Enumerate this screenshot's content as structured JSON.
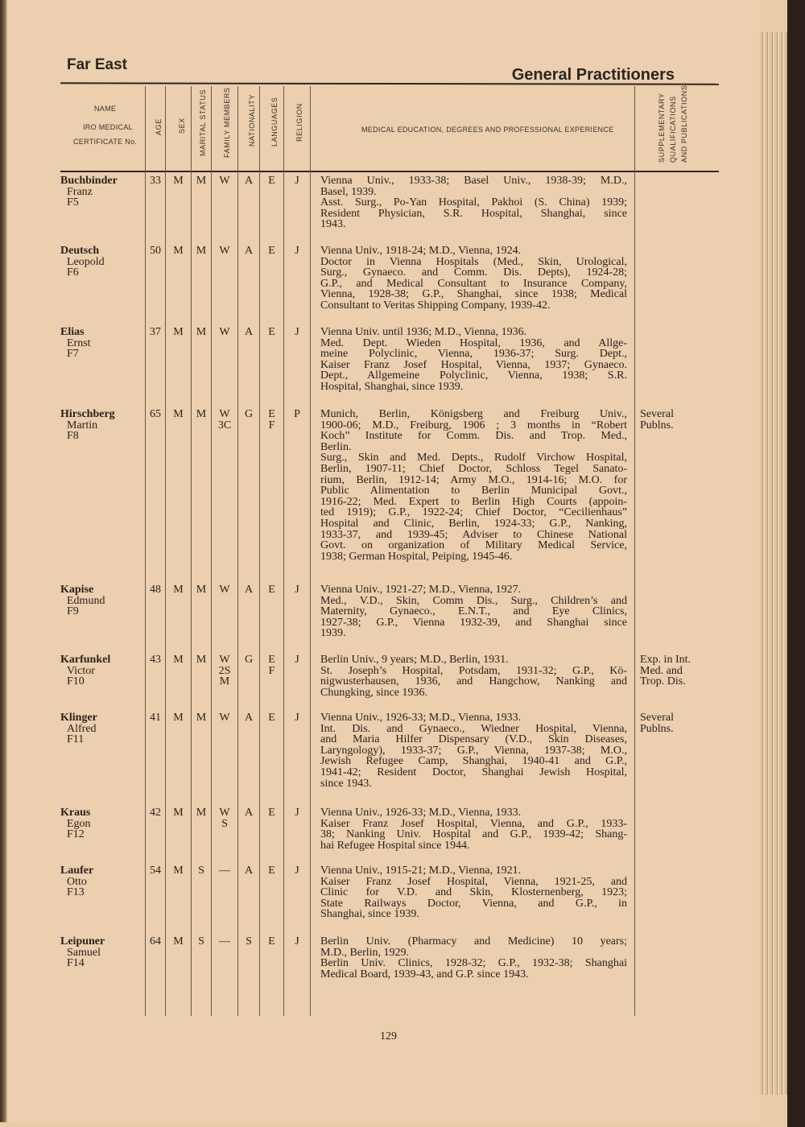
{
  "header": {
    "left": "Far East",
    "right": "General Practitioners"
  },
  "columns": {
    "name": "NAME",
    "iro": "IRO MEDICAL",
    "cert": "CERTIFICATE No.",
    "age": "AGE",
    "sex": "SEX",
    "marital": "MARITAL STATUS",
    "family": "FAMILY MEMBERS",
    "nationality": "NATIONALITY",
    "languages": "LANGUAGES",
    "religion": "RELIGION",
    "education": "MEDICAL EDUCATION, DEGREES AND PROFESSIONAL EXPERIENCE",
    "supp1": "SUPPLEMENTARY",
    "supp2": "QUALIFICATIONS",
    "supp3": "AND PUBLICATIONS"
  },
  "rows": [
    {
      "surname": "Buchbinder",
      "given": "Franz",
      "cert": "F5",
      "age": "33",
      "sex": "M",
      "marital": "M",
      "family": "W",
      "nationality": "A",
      "languages": "E",
      "religion": "J",
      "paragraphs": [
        [
          "Vienna Univ., 1933-38; Basel Univ., 1938-39; M.D.,",
          "Basel, 1939."
        ],
        [
          "Asst. Surg., Po-Yan Hospital, Pakhoi (S. China) 1939;",
          "Resident Physician, S.R. Hospital, Shanghai, since",
          "1943."
        ]
      ],
      "supp": ""
    },
    {
      "surname": "Deutsch",
      "given": "Leopold",
      "cert": "F6",
      "age": "50",
      "sex": "M",
      "marital": "M",
      "family": "W",
      "nationality": "A",
      "languages": "E",
      "religion": "J",
      "paragraphs": [
        [
          "Vienna Univ., 1918-24; M.D., Vienna, 1924."
        ],
        [
          "Doctor in Vienna Hospitals (Med., Skin, Urological,",
          "Surg., Gynaeco. and Comm. Dis. Depts), 1924-28;",
          "G.P., and Medical Consultant to Insurance Company,",
          "Vienna, 1928-38; G.P., Shanghai, since 1938; Medical",
          "Consultant to Veritas Shipping Company, 1939-42."
        ]
      ],
      "supp": ""
    },
    {
      "surname": "Elias",
      "given": "Ernst",
      "cert": "F7",
      "age": "37",
      "sex": "M",
      "marital": "M",
      "family": "W",
      "nationality": "A",
      "languages": "E",
      "religion": "J",
      "paragraphs": [
        [
          "Vienna Univ. until 1936; M.D., Vienna, 1936."
        ],
        [
          "Med. Dept. Wieden Hospital, 1936, and Allge-",
          "meine Polyclinic, Vienna, 1936-37; Surg. Dept.,",
          "Kaiser Franz Josef Hospital, Vienna, 1937; Gynaeco.",
          "Dept., Allgemeine Polyclinic, Vienna, 1938; S.R.",
          "Hospital, Shanghai, since 1939."
        ]
      ],
      "supp": ""
    },
    {
      "surname": "Hirschberg",
      "given": "Martin",
      "cert": "F8",
      "age": "65",
      "sex": "M",
      "marital": "M",
      "family": "W\n3C",
      "nationality": "G",
      "languages": "E\nF",
      "religion": "P",
      "paragraphs": [
        [
          "Munich, Berlin, Königsberg and Freiburg Univ.,",
          "1900-06; M.D., Freiburg, 1906 ; 3 months in “Robert",
          "Koch” Institute for Comm. Dis. and Trop. Med.,",
          "Berlin."
        ],
        [
          "Surg., Skin and Med. Depts., Rudolf Virchow Hospital,",
          "Berlin, 1907-11; Chief Doctor, Schloss Tegel Sanato-",
          "rium, Berlin, 1912-14; Army M.O., 1914-16; M.O. for",
          "Public Alimentation to Berlin Municipal Govt.,",
          "1916-22; Med. Expert to Berlin High Courts (appoin-",
          "ted 1919); G.P., 1922-24; Chief Doctor, “Cecilienhaus”",
          "Hospital and Clinic, Berlin, 1924-33; G.P., Nanking,",
          "1933-37, and 1939-45; Adviser to Chinese National",
          "Govt. on organization of Military Medical Service,",
          "1938; German Hospital, Peiping, 1945-46."
        ]
      ],
      "supp": "Several\nPublns."
    },
    {
      "surname": "Kapise",
      "given": "Edmund",
      "cert": "F9",
      "age": "48",
      "sex": "M",
      "marital": "M",
      "family": "W",
      "nationality": "A",
      "languages": "E",
      "religion": "J",
      "paragraphs": [
        [
          "Vienna Univ., 1921-27; M.D., Vienna, 1927."
        ],
        [
          "Med., V.D., Skin, Comm Dis., Surg., Children’s and",
          "Maternity, Gynaeco., E.N.T., and Eye Clinics,",
          "1927-38; G.P., Vienna 1932-39, and Shanghai since",
          "1939."
        ]
      ],
      "supp": ""
    },
    {
      "surname": "Karfunkel",
      "given": "Victor",
      "cert": "F10",
      "age": "43",
      "sex": "M",
      "marital": "M",
      "family": "W\n2S\nM",
      "nationality": "G",
      "languages": "E\nF",
      "religion": "J",
      "paragraphs": [
        [
          "Berlin Univ., 9 years; M.D., Berlin, 1931."
        ],
        [
          "St. Joseph’s Hospital, Potsdam, 1931-32; G.P., Kö-",
          "nigwusterhausen, 1936, and Hangchow, Nanking and",
          "Chungking, since 1936."
        ]
      ],
      "supp": "Exp. in Int.\nMed. and\nTrop. Dis."
    },
    {
      "surname": "Klinger",
      "given": "Alfred",
      "cert": "F11",
      "age": "41",
      "sex": "M",
      "marital": "M",
      "family": "W",
      "nationality": "A",
      "languages": "E",
      "religion": "J",
      "paragraphs": [
        [
          "Vienna Univ., 1926-33; M.D., Vienna, 1933."
        ],
        [
          "Int. Dis. and Gynaeco., Wiedner Hospital, Vienna,",
          "and Maria Hilfer Dispensary (V.D., Skin Diseases,",
          "Laryngology), 1933-37; G.P., Vienna, 1937-38; M.O.,",
          "Jewish Refugee Camp, Shanghai, 1940-41 and G.P.,",
          "1941-42; Resident Doctor, Shanghai Jewish Hospital,",
          "since 1943."
        ]
      ],
      "supp": "Several\nPublns."
    },
    {
      "surname": "Kraus",
      "given": "Egon",
      "cert": "F12",
      "age": "42",
      "sex": "M",
      "marital": "M",
      "family": "W\nS",
      "nationality": "A",
      "languages": "E",
      "religion": "J",
      "paragraphs": [
        [
          "Vienna Univ., 1926-33; M.D., Vienna, 1933."
        ],
        [
          "Kaiser Franz Josef Hospital, Vienna, and G.P., 1933-",
          "38; Nanking Univ. Hospital and G.P., 1939-42; Shang-",
          "hai Refugee Hospital since 1944."
        ]
      ],
      "supp": ""
    },
    {
      "surname": "Laufer",
      "given": "Otto",
      "cert": "F13",
      "age": "54",
      "sex": "M",
      "marital": "S",
      "family": "—",
      "nationality": "A",
      "languages": "E",
      "religion": "J",
      "paragraphs": [
        [
          "Vienna Univ., 1915-21; M.D., Vienna, 1921."
        ],
        [
          "Kaiser Franz Josef Hospital, Vienna, 1921-25, and",
          "Clinic for V.D. and Skin, Klosternenberg, 1923;",
          "State Railways Doctor, Vienna, and G.P., in",
          "Shanghai, since 1939."
        ]
      ],
      "supp": ""
    },
    {
      "surname": "Leipuner",
      "given": "Samuel",
      "cert": "F14",
      "age": "64",
      "sex": "M",
      "marital": "S",
      "family": "—",
      "nationality": "S",
      "languages": "E",
      "religion": "J",
      "paragraphs": [
        [
          "Berlin Univ. (Pharmacy and Medicine) 10 years;",
          "M.D., Berlin, 1929."
        ],
        [
          "Berlin Univ. Clinics, 1928-32; G.P., 1932-38; Shanghai",
          "Medical Board, 1939-43, and G.P. since 1943."
        ]
      ],
      "supp": ""
    }
  ],
  "page_number": "129"
}
